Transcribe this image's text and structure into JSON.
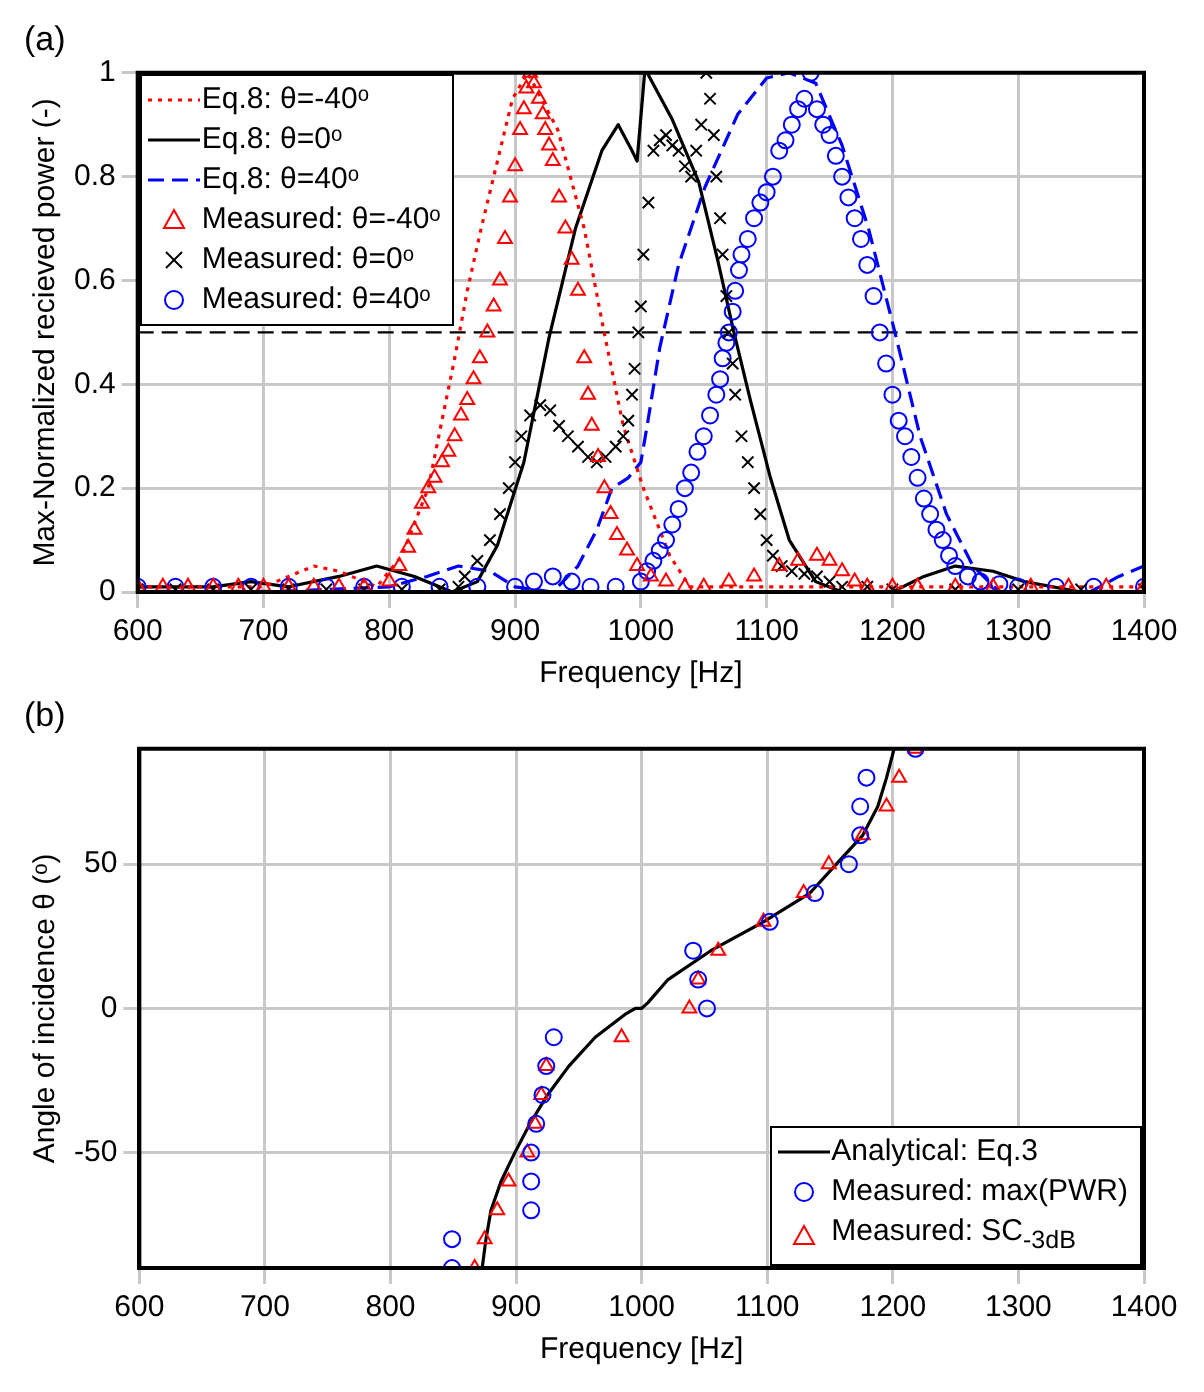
{
  "chart_data": [
    {
      "type": "line",
      "title": "(a)",
      "xlabel": "Frequency [Hz]",
      "ylabel": "Max-Normalized recieved power (-)",
      "xlim": [
        600,
        1400
      ],
      "xticks": [
        600,
        700,
        800,
        900,
        1000,
        1100,
        1200,
        1300,
        1400
      ],
      "ylim": [
        0,
        1
      ],
      "yticks": [
        0,
        0.2,
        0.4,
        0.6,
        0.8,
        1
      ],
      "grid": true,
      "legend": "top left",
      "ref_lines": [
        {
          "axis": "y",
          "value": 0.5,
          "color": "#000000",
          "line_style": "dashed"
        }
      ],
      "series": [
        {
          "name": "Eq.8: θ=-40ᵒ",
          "color": "#ff0000",
          "line_style": "dotted",
          "x": [
            600,
            650,
            700,
            720,
            740,
            760,
            790,
            810,
            831,
            841,
            852,
            862,
            873,
            886,
            898,
            910,
            934,
            955,
            970,
            986,
            1002,
            1023,
            1039,
            1100,
            1200,
            1300,
            1400
          ],
          "values": [
            0.01,
            0.01,
            0.01,
            0.03,
            0.05,
            0.04,
            0.01,
            0.07,
            0.2,
            0.32,
            0.45,
            0.58,
            0.7,
            0.83,
            0.95,
            1.0,
            0.89,
            0.7,
            0.51,
            0.32,
            0.2,
            0.07,
            0.01,
            0.01,
            0.01,
            0.01,
            0.01
          ]
        },
        {
          "name": "Eq.8: θ=0ᵒ",
          "color": "#000000",
          "line_style": "solid",
          "x": [
            600,
            660,
            690,
            720,
            760,
            790,
            820,
            850,
            870,
            886,
            907,
            927,
            948,
            969,
            982,
            993,
            997,
            1003,
            1005,
            1025,
            1046,
            1061,
            1074,
            1087,
            1103,
            1118,
            1139,
            1160,
            1200,
            1225,
            1250,
            1280,
            1305,
            1350,
            1400
          ],
          "values": [
            0.01,
            0.01,
            0.02,
            0.01,
            0.03,
            0.05,
            0.03,
            0.0,
            0.02,
            0.09,
            0.25,
            0.49,
            0.7,
            0.85,
            0.9,
            0.85,
            0.83,
            1.0,
            1.0,
            0.91,
            0.79,
            0.64,
            0.5,
            0.37,
            0.22,
            0.1,
            0.02,
            0.0,
            0.0,
            0.03,
            0.05,
            0.04,
            0.02,
            0.0,
            0.0
          ]
        },
        {
          "name": "Eq.8: θ=40ᵒ",
          "color": "#0000ff",
          "line_style": "dashed",
          "x": [
            600,
            700,
            800,
            830,
            855,
            880,
            900,
            930,
            950,
            965,
            977,
            990,
            1000,
            1005,
            1015,
            1030,
            1051,
            1077,
            1100,
            1118,
            1139,
            1160,
            1181,
            1202,
            1222,
            1243,
            1264,
            1285,
            1330,
            1357,
            1380,
            1400
          ],
          "values": [
            0.0,
            0.0,
            0.01,
            0.03,
            0.05,
            0.04,
            0.01,
            0.0,
            0.05,
            0.12,
            0.2,
            0.22,
            0.25,
            0.32,
            0.47,
            0.63,
            0.78,
            0.92,
            0.99,
            1.0,
            0.98,
            0.86,
            0.7,
            0.5,
            0.3,
            0.15,
            0.05,
            0.0,
            0.0,
            0.0,
            0.03,
            0.05
          ]
        },
        {
          "name": "Measured: θ=-40ᵒ",
          "type": "scatter",
          "color": "#ff0000",
          "marker": "triangle",
          "x": [
            600,
            620,
            640,
            660,
            680,
            700,
            720,
            740,
            760,
            780,
            800,
            808,
            815,
            820,
            826,
            831,
            836,
            842,
            847,
            852,
            857,
            862,
            867,
            872,
            878,
            883,
            888,
            892,
            896,
            900,
            904,
            907,
            909,
            912,
            915,
            919,
            922,
            924,
            927,
            930,
            935,
            940,
            945,
            950,
            955,
            958,
            961,
            966,
            971,
            976,
            981,
            989,
            997,
            1008,
            1020,
            1035,
            1050,
            1070,
            1090,
            1110,
            1125,
            1140,
            1150,
            1160,
            1170,
            1180,
            1200,
            1220,
            1250,
            1280,
            1310,
            1340,
            1370,
            1400
          ],
          "values": [
            0.01,
            0.01,
            0.01,
            0.01,
            0.01,
            0.01,
            0.01,
            0.01,
            0.01,
            0.01,
            0.02,
            0.05,
            0.085,
            0.12,
            0.17,
            0.2,
            0.22,
            0.25,
            0.27,
            0.3,
            0.34,
            0.37,
            0.41,
            0.45,
            0.5,
            0.55,
            0.6,
            0.68,
            0.76,
            0.82,
            0.89,
            0.93,
            0.97,
            1.0,
            0.98,
            0.95,
            0.92,
            0.89,
            0.86,
            0.83,
            0.76,
            0.7,
            0.64,
            0.58,
            0.45,
            0.38,
            0.32,
            0.26,
            0.2,
            0.15,
            0.11,
            0.08,
            0.05,
            0.03,
            0.02,
            0.01,
            0.01,
            0.02,
            0.03,
            0.05,
            0.06,
            0.07,
            0.06,
            0.04,
            0.02,
            0.01,
            0.01,
            0.01,
            0.01,
            0.01,
            0.01,
            0.01,
            0.01,
            0.01
          ]
        },
        {
          "name": "Measured: θ=0ᵒ",
          "type": "scatter",
          "color": "#000000",
          "marker": "cross",
          "x": [
            600,
            630,
            660,
            690,
            720,
            750,
            780,
            810,
            840,
            855,
            860,
            870,
            880,
            888,
            895,
            900,
            905,
            912,
            920,
            928,
            935,
            942,
            950,
            958,
            965,
            972,
            980,
            986,
            990,
            993,
            995,
            998,
            1000,
            1002,
            1006,
            1010,
            1015,
            1020,
            1025,
            1030,
            1035,
            1040,
            1044,
            1048,
            1052,
            1055,
            1058,
            1060,
            1063,
            1065,
            1068,
            1070,
            1073,
            1075,
            1080,
            1085,
            1090,
            1095,
            1100,
            1105,
            1112,
            1120,
            1130,
            1140,
            1150,
            1160,
            1180,
            1200,
            1250,
            1300,
            1350,
            1400
          ],
          "values": [
            0.005,
            0.005,
            0.005,
            0.005,
            0.005,
            0.005,
            0.005,
            0.005,
            0.005,
            0.01,
            0.03,
            0.06,
            0.1,
            0.15,
            0.2,
            0.25,
            0.3,
            0.34,
            0.36,
            0.35,
            0.32,
            0.3,
            0.28,
            0.26,
            0.25,
            0.26,
            0.28,
            0.3,
            0.33,
            0.38,
            0.43,
            0.5,
            0.55,
            0.65,
            0.75,
            0.85,
            0.87,
            0.88,
            0.86,
            0.85,
            0.82,
            0.8,
            0.85,
            0.9,
            1.0,
            0.95,
            0.88,
            0.8,
            0.72,
            0.65,
            0.57,
            0.5,
            0.44,
            0.38,
            0.3,
            0.25,
            0.2,
            0.15,
            0.1,
            0.07,
            0.05,
            0.04,
            0.035,
            0.03,
            0.02,
            0.01,
            0.01,
            0.005,
            0.005,
            0.005,
            0.005,
            0.005
          ]
        },
        {
          "name": "Measured: θ=40ᵒ",
          "type": "scatter",
          "color": "#0000ff",
          "marker": "circle",
          "x": [
            600,
            630,
            660,
            690,
            720,
            750,
            780,
            810,
            840,
            870,
            900,
            915,
            930,
            945,
            960,
            980,
            1000,
            1005,
            1010,
            1015,
            1020,
            1025,
            1030,
            1035,
            1040,
            1045,
            1050,
            1055,
            1060,
            1063,
            1065,
            1068,
            1070,
            1073,
            1075,
            1078,
            1080,
            1085,
            1090,
            1095,
            1100,
            1105,
            1110,
            1115,
            1120,
            1125,
            1130,
            1135,
            1140,
            1145,
            1150,
            1155,
            1160,
            1165,
            1170,
            1175,
            1180,
            1185,
            1190,
            1195,
            1200,
            1205,
            1210,
            1215,
            1220,
            1225,
            1230,
            1235,
            1240,
            1245,
            1250,
            1260,
            1270,
            1285,
            1300,
            1330,
            1360,
            1400
          ],
          "values": [
            0.01,
            0.01,
            0.01,
            0.01,
            0.01,
            0.01,
            0.01,
            0.01,
            0.01,
            0.01,
            0.01,
            0.02,
            0.03,
            0.02,
            0.01,
            0.01,
            0.02,
            0.04,
            0.06,
            0.08,
            0.1,
            0.13,
            0.16,
            0.2,
            0.23,
            0.27,
            0.3,
            0.34,
            0.38,
            0.41,
            0.45,
            0.48,
            0.5,
            0.54,
            0.58,
            0.62,
            0.65,
            0.68,
            0.72,
            0.75,
            0.77,
            0.8,
            0.85,
            0.87,
            0.9,
            0.93,
            0.95,
            1.0,
            0.93,
            0.9,
            0.88,
            0.84,
            0.8,
            0.76,
            0.72,
            0.68,
            0.63,
            0.57,
            0.5,
            0.44,
            0.38,
            0.33,
            0.3,
            0.26,
            0.22,
            0.18,
            0.15,
            0.12,
            0.1,
            0.07,
            0.05,
            0.03,
            0.02,
            0.015,
            0.01,
            0.01,
            0.01,
            0.01
          ]
        }
      ]
    },
    {
      "type": "scatter",
      "title": "(b)",
      "xlabel": "Frequency [Hz]",
      "ylabel": "Angle of incidence θ (ᵒ)",
      "xlim": [
        600,
        1400
      ],
      "xticks": [
        600,
        700,
        800,
        900,
        1000,
        1100,
        1200,
        1300,
        1400
      ],
      "ylim": [
        -90,
        90
      ],
      "yticks": [
        -50,
        0,
        50
      ],
      "grid": true,
      "legend": "bottom right",
      "series": [
        {
          "name": "Analytical: Eq.3",
          "type": "line",
          "color": "#000000",
          "line_style": "solid",
          "x": [
            873,
            876,
            880,
            888,
            899,
            911,
            925,
            942,
            963,
            987,
            995,
            1000,
            1005,
            1021,
            1055,
            1097,
            1134,
            1155,
            1176,
            1188,
            1195,
            1201
          ],
          "values": [
            -90,
            -80,
            -70,
            -60,
            -50,
            -40,
            -30,
            -20,
            -10,
            -2,
            0,
            0,
            2,
            10,
            20,
            30,
            40,
            50,
            60,
            70,
            80,
            90
          ]
        },
        {
          "name": "Measured: max(PWR)",
          "color": "#0000ff",
          "marker": "circle",
          "x": [
            849,
            849,
            912,
            912,
            912,
            916,
            921,
            924,
            930,
            1052,
            1045,
            1041,
            1102,
            1138,
            1165,
            1174,
            1174,
            1179,
            1218
          ],
          "values": [
            -90,
            -80,
            -70,
            -60,
            -50,
            -40,
            -30,
            -20,
            -10,
            0,
            10,
            20,
            30,
            40,
            50,
            60,
            70,
            80,
            90
          ]
        },
        {
          "name": "Measured: SC$_{-3dB}$",
          "color": "#ff0000",
          "marker": "triangle",
          "x": [
            867,
            875,
            885,
            894,
            909,
            915,
            920,
            924,
            984,
            1038,
            1045,
            1061,
            1097,
            1129,
            1149,
            1176,
            1195,
            1205,
            1218
          ],
          "values": [
            -90,
            -80,
            -70,
            -60,
            -50,
            -40,
            -30,
            -20,
            -10,
            0,
            10,
            20,
            30,
            40,
            50,
            60,
            70,
            80,
            90
          ]
        }
      ]
    }
  ]
}
